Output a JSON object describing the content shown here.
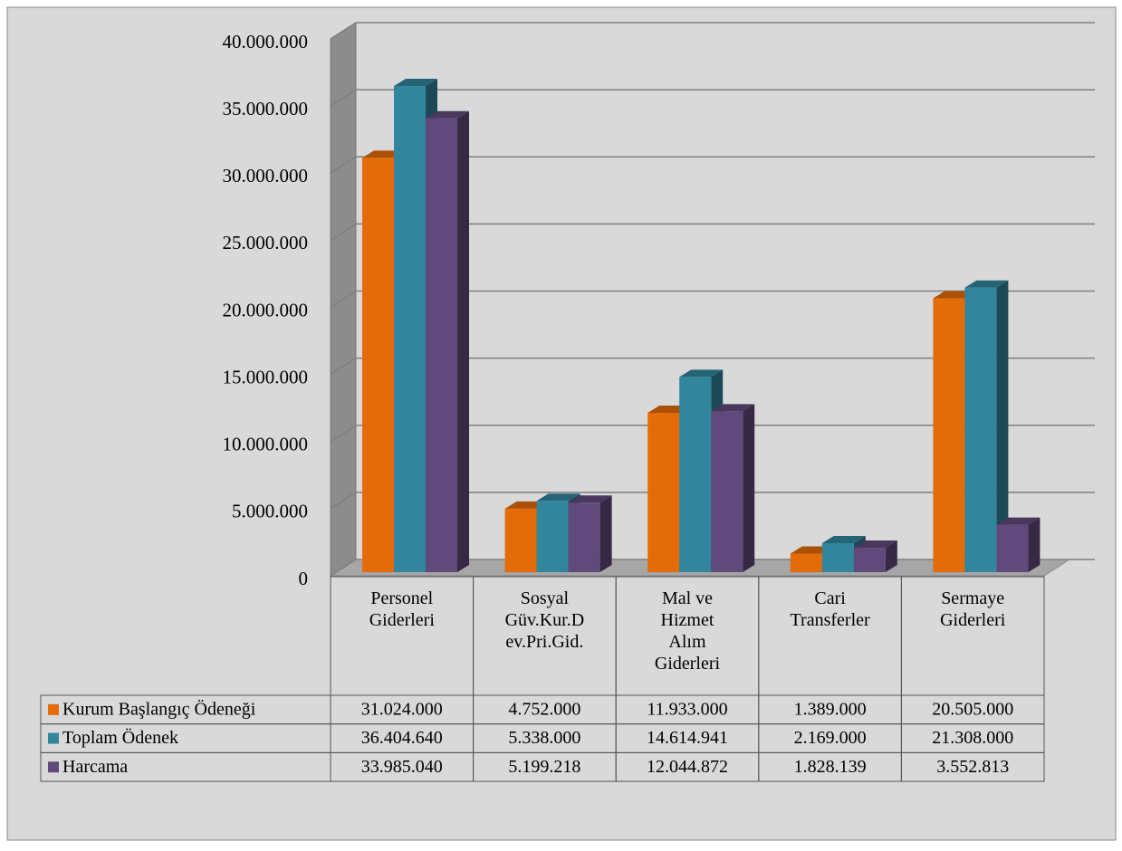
{
  "chart_data": {
    "type": "bar3d",
    "categories": [
      "Personel Giderleri",
      "Sosyal Güv.Kur.Dev.Pri.Gid.",
      "Mal ve Hizmet Alım Giderleri",
      "Cari Transferler",
      "Sermaye Giderleri"
    ],
    "series": [
      {
        "name": "Kurum Başlangıç Ödeneği",
        "color": "#e36c09",
        "values": [
          31024000,
          4752000,
          11933000,
          1389000,
          20505000
        ],
        "value_labels": [
          "31.024.000",
          "4.752.000",
          "11.933.000",
          "1.389.000",
          "20.505.000"
        ]
      },
      {
        "name": "Toplam Ödenek",
        "color": "#31859c",
        "values": [
          36404640,
          5338000,
          14614941,
          2169000,
          21308000
        ],
        "value_labels": [
          "36.404.640",
          "5.338.000",
          "14.614.941",
          "2.169.000",
          "21.308.000"
        ]
      },
      {
        "name": "Harcama",
        "color": "#604a7b",
        "values": [
          33985040,
          5199218,
          12044872,
          1828139,
          3552813
        ],
        "value_labels": [
          "33.985.040",
          "5.199.218",
          "12.044.872",
          "1.828.139",
          "3.552.813"
        ]
      }
    ],
    "ylim": [
      0,
      40000000
    ],
    "yticks": [
      0,
      {
        "value": 5000000,
        "label": "5.000.000"
      },
      {
        "value": 10000000,
        "label": "10.000.000"
      },
      {
        "value": 15000000,
        "label": "15.000.000"
      },
      {
        "value": 20000000,
        "label": "20.000.000"
      },
      {
        "value": 25000000,
        "label": "25.000.000"
      },
      {
        "value": 30000000,
        "label": "30.000.000"
      },
      {
        "value": 35000000,
        "label": "35.000.000"
      },
      {
        "value": 40000000,
        "label": "40.000.000"
      }
    ],
    "grid": true,
    "legend": "table"
  }
}
